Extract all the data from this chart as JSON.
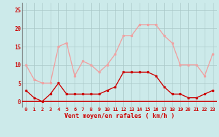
{
  "hours": [
    0,
    1,
    2,
    3,
    4,
    5,
    6,
    7,
    8,
    9,
    10,
    11,
    12,
    13,
    14,
    15,
    16,
    17,
    18,
    19,
    20,
    21,
    22,
    23
  ],
  "wind_avg": [
    3,
    1,
    0,
    2,
    5,
    2,
    2,
    2,
    2,
    2,
    3,
    4,
    8,
    8,
    8,
    8,
    7,
    4,
    2,
    2,
    1,
    1,
    2,
    3
  ],
  "wind_gust": [
    10,
    6,
    5,
    5,
    15,
    16,
    7,
    11,
    10,
    8,
    10,
    13,
    18,
    18,
    21,
    21,
    21,
    18,
    16,
    10,
    10,
    10,
    7,
    13
  ],
  "avg_color": "#cc0000",
  "gust_color": "#f0a0a0",
  "bg_color": "#cceaea",
  "grid_color": "#aac8c8",
  "axis_color": "#cc0000",
  "xlabel": "Vent moyen/en rafales ( km/h )",
  "yticks": [
    0,
    5,
    10,
    15,
    20,
    25
  ],
  "ylim": [
    -1.5,
    27
  ],
  "xlim": [
    -0.5,
    23.5
  ],
  "wind_dirs": [
    "→",
    "↓",
    "→",
    "↓",
    "→",
    "↓",
    "↓",
    "↓",
    "↓",
    "↓",
    "↓",
    "→",
    "→",
    "→",
    "↑",
    "→",
    "→",
    "↓",
    "↓",
    "↓",
    "↓",
    "↓",
    "↓",
    "↓"
  ]
}
